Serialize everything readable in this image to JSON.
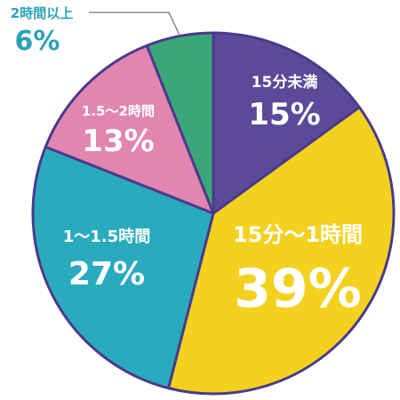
{
  "chart_data": {
    "type": "pie",
    "start_angle_deg": 0,
    "direction": "clockwise",
    "slices": [
      {
        "label": "15分未満",
        "value": 15,
        "value_text": "15%",
        "color": "#5b4a98"
      },
      {
        "label": "15分〜1時間",
        "value": 39,
        "value_text": "39%",
        "color": "#f2d21f"
      },
      {
        "label": "1〜1.5時間",
        "value": 27,
        "value_text": "27%",
        "color": "#2aabbd"
      },
      {
        "label": "1.5〜2時間",
        "value": 13,
        "value_text": "13%",
        "color": "#e285b0"
      },
      {
        "label": "2時間以上",
        "value": 6,
        "value_text": "6%",
        "color": "#3aa77a"
      }
    ],
    "outline_color": "#4a3a8c",
    "callout_color": "#2aa2b8"
  }
}
